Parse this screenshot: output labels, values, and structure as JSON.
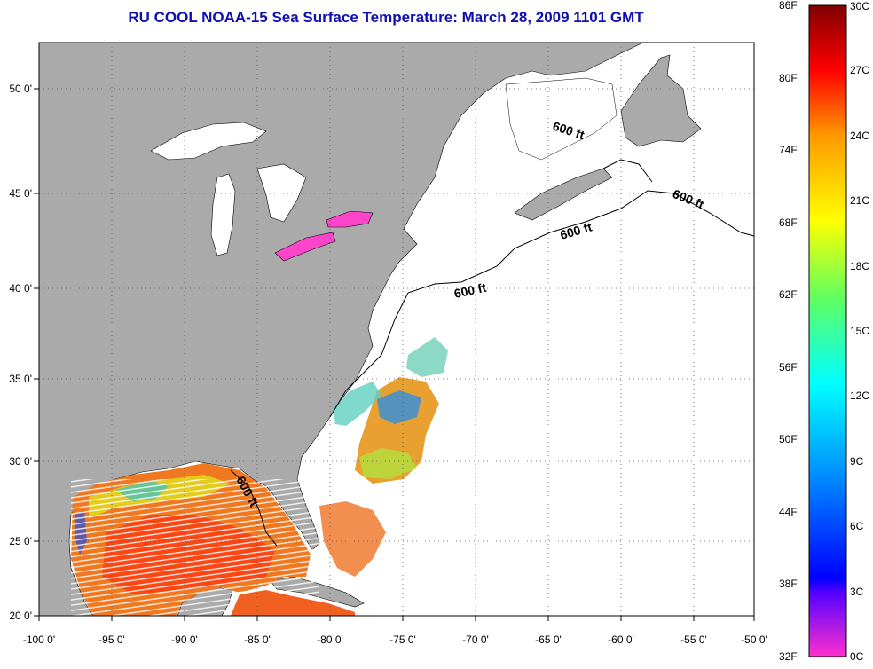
{
  "title": "RU COOL  NOAA-15  Sea Surface Temperature:  March 28, 2009 1101 GMT",
  "longitude_ticks": [
    "-100 0'",
    "-95 0'",
    "-90 0'",
    "-85 0'",
    "-80 0'",
    "-75 0'",
    "-70 0'",
    "-65 0'",
    "-60 0'",
    "-55 0'",
    "-50 0'"
  ],
  "latitude_ticks": [
    "50 0'",
    "45 0'",
    "40 0'",
    "35 0'",
    "30 0'",
    "25 0'",
    "20 0'"
  ],
  "contour_labels": [
    "600 ft",
    "600 ft",
    "600 ft",
    "600 ft",
    "600 ft"
  ],
  "colorbar": {
    "fahrenheit_labels": [
      "86F",
      "80F",
      "74F",
      "68F",
      "62F",
      "56F",
      "50F",
      "44F",
      "38F",
      "32F"
    ],
    "celsius_labels": [
      "30C",
      "27C",
      "24C",
      "21C",
      "18C",
      "15C",
      "12C",
      "9C",
      "6C",
      "3C",
      "0C"
    ]
  },
  "colors": {
    "land": "#aaaaaa",
    "no_data": "#ffffff",
    "title": "#1010b0"
  }
}
